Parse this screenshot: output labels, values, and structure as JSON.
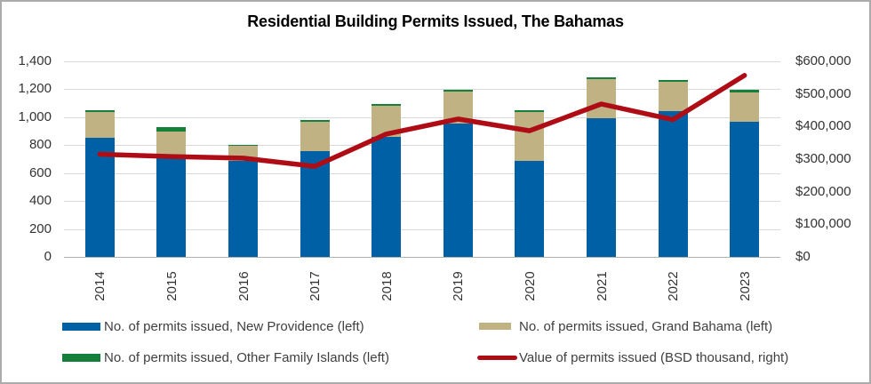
{
  "title": "Residential Building Permits Issued, The Bahamas",
  "colors": {
    "new_providence_blue": "#0060a6",
    "grand_bahama_tan": "#c0b283",
    "other_family_islands_green": "#15803a",
    "value_line_red": "#ae0d16",
    "gridline": "#d9d9d9",
    "axis_line": "#b3b3ae",
    "tick_text": "#333333",
    "legend_text": "#3f3f3f",
    "frame_border": "#ababab"
  },
  "y_axis_left": {
    "ticks": [
      "1,400",
      "1,200",
      "1,000",
      "800",
      "600",
      "400",
      "200",
      "0"
    ]
  },
  "y_axis_right": {
    "ticks": [
      "$600,000",
      "$500,000",
      "$400,000",
      "$300,000",
      "$200,000",
      "$100,000",
      "$0"
    ]
  },
  "x_axis": {
    "labels": [
      "2014",
      "2015",
      "2016",
      "2017",
      "2018",
      "2019",
      "2020",
      "2021",
      "2022",
      "2023"
    ]
  },
  "legend": {
    "items": [
      {
        "label": "No. of permits issued, New Providence (left)",
        "color_key": "new_providence_blue",
        "swatch": "rect"
      },
      {
        "label": "No. of permits issued, Grand Bahama (left)",
        "color_key": "grand_bahama_tan",
        "swatch": "rect"
      },
      {
        "label": "No. of permits issued, Other Family Islands (left)",
        "color_key": "other_family_islands_green",
        "swatch": "rect"
      },
      {
        "label": "Value of permits issued (BSD thousand, right)",
        "color_key": "value_line_red",
        "swatch": "line"
      }
    ]
  },
  "chart_data": {
    "type": "combo: stacked bar + line",
    "title": "Residential Building Permits Issued, The Bahamas",
    "categories": [
      "2014",
      "2015",
      "2016",
      "2017",
      "2018",
      "2019",
      "2020",
      "2021",
      "2022",
      "2023"
    ],
    "series": [
      {
        "name": "No. of permits issued, New Providence (left)",
        "type": "bar",
        "axis": "left",
        "color_key": "new_providence_blue",
        "values": [
          850,
          710,
          685,
          755,
          860,
          955,
          685,
          990,
          1045,
          970
        ]
      },
      {
        "name": "No. of permits issued, Grand Bahama (left)",
        "type": "bar",
        "axis": "left",
        "color_key": "grand_bahama_tan",
        "values": [
          190,
          190,
          110,
          215,
          225,
          230,
          355,
          285,
          210,
          210
        ]
      },
      {
        "name": "No. of permits issued, Other Family Islands (left)",
        "type": "bar",
        "axis": "left",
        "color_key": "other_family_islands_green",
        "values": [
          10,
          30,
          10,
          10,
          10,
          10,
          10,
          10,
          10,
          15
        ]
      },
      {
        "name": "Value of permits issued (BSD thousand, right)",
        "type": "line",
        "axis": "right",
        "color_key": "value_line_red",
        "values": [
          315000,
          308000,
          303000,
          278000,
          377000,
          423000,
          387000,
          469000,
          421000,
          557000
        ]
      }
    ],
    "left_ylim": [
      0,
      1400
    ],
    "left_tick_step": 200,
    "right_ylim": [
      0,
      600000
    ],
    "right_tick_step": 100000,
    "grid": true,
    "legend_position": "bottom"
  }
}
